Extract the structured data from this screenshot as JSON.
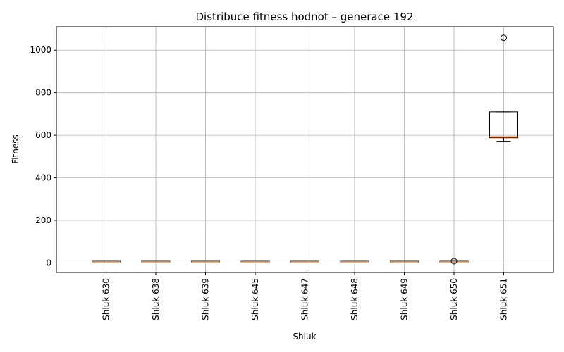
{
  "chart_data": {
    "type": "box",
    "title": "Distribuce fitness hodnot – generace 192",
    "xlabel": "Shluk",
    "ylabel": "Fitness",
    "ylim": [
      -45,
      1110
    ],
    "yticks": [
      0,
      200,
      400,
      600,
      800,
      1000
    ],
    "grid": true,
    "categories": [
      "Shluk 630",
      "Shluk 638",
      "Shluk 639",
      "Shluk 645",
      "Shluk 647",
      "Shluk 648",
      "Shluk 649",
      "Shluk 650",
      "Shluk 651"
    ],
    "boxes": [
      {
        "min": 5,
        "q1": 5,
        "median": 6,
        "q3": 8,
        "max": 8,
        "outliers": []
      },
      {
        "min": 5,
        "q1": 5,
        "median": 6,
        "q3": 8,
        "max": 8,
        "outliers": []
      },
      {
        "min": 5,
        "q1": 5,
        "median": 6,
        "q3": 8,
        "max": 8,
        "outliers": []
      },
      {
        "min": 5,
        "q1": 5,
        "median": 6,
        "q3": 8,
        "max": 8,
        "outliers": []
      },
      {
        "min": 5,
        "q1": 5,
        "median": 6,
        "q3": 8,
        "max": 8,
        "outliers": []
      },
      {
        "min": 5,
        "q1": 5,
        "median": 6,
        "q3": 8,
        "max": 8,
        "outliers": []
      },
      {
        "min": 5,
        "q1": 5,
        "median": 6,
        "q3": 8,
        "max": 8,
        "outliers": []
      },
      {
        "min": 5,
        "q1": 5,
        "median": 6,
        "q3": 8,
        "max": 8,
        "outliers": [
          8
        ]
      },
      {
        "min": 572,
        "q1": 588,
        "median": 593,
        "q3": 710,
        "max": 710,
        "outliers": [
          1058
        ]
      }
    ],
    "colors": {
      "box": "#000000",
      "median": "#ff7f0e",
      "grid": "#b0b0b0",
      "outlier": "#000000"
    }
  }
}
